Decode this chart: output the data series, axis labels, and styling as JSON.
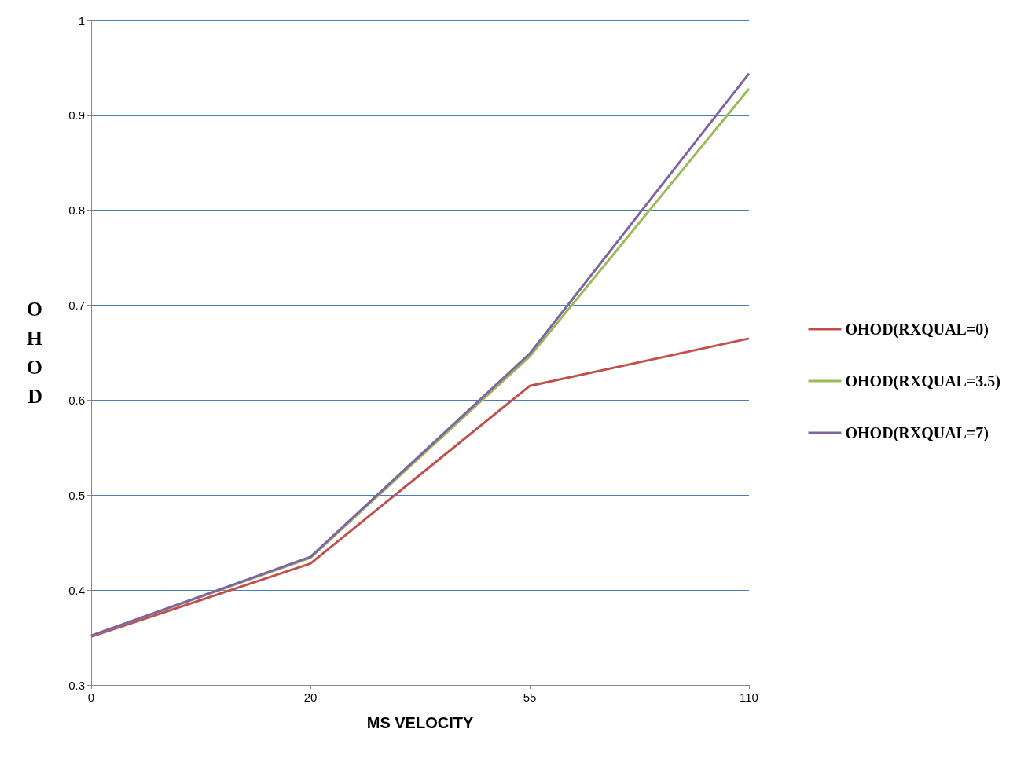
{
  "chart_data": {
    "type": "line",
    "xlabel": "MS VELOCITY",
    "ylabel": "OHOD",
    "categories": [
      "0",
      "20",
      "55",
      "110"
    ],
    "series": [
      {
        "name": "OHOD(RXQUAL=0)",
        "color": "#c0504d",
        "values": [
          0.351,
          0.428,
          0.615,
          0.665
        ]
      },
      {
        "name": "OHOD(RXQUAL=3.5)",
        "color": "#9bbb59",
        "values": [
          0.352,
          0.434,
          0.646,
          0.928
        ]
      },
      {
        "name": "OHOD(RXQUAL=7)",
        "color": "#8064a2",
        "values": [
          0.352,
          0.435,
          0.649,
          0.944
        ]
      }
    ],
    "ylim": [
      0.3,
      1
    ],
    "yticks": [
      0.3,
      0.4,
      0.5,
      0.6,
      0.7,
      0.8,
      0.9,
      1
    ],
    "grid": "y",
    "legend": "right",
    "marker": "none",
    "line_style": "solid"
  }
}
